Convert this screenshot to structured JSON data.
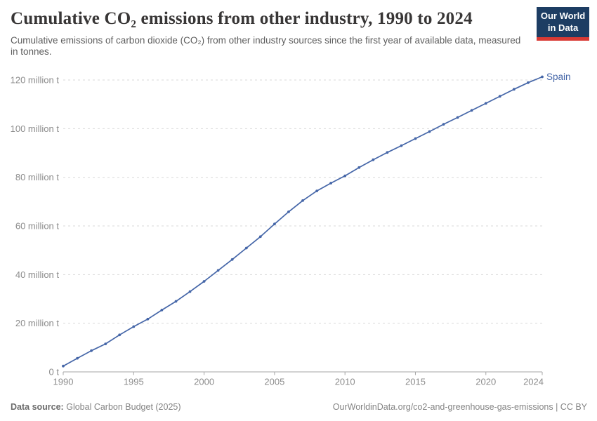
{
  "header": {
    "title": "Cumulative CO₂ emissions from other industry, 1990 to 2024",
    "subtitle": "Cumulative emissions of carbon dioxide (CO₂) from other industry sources since the first year of available data, measured in tonnes.",
    "logo": {
      "line1": "Our World",
      "line2": "in Data",
      "bg_color": "#1d3d63",
      "stripe_color": "#d93a34"
    }
  },
  "chart_data": {
    "type": "line",
    "title": "Cumulative CO₂ emissions from other industry, 1990 to 2024",
    "xlabel": "",
    "ylabel": "",
    "unit": "million t",
    "xlim": [
      1990,
      2024
    ],
    "ylim": [
      0,
      120
    ],
    "grid": "horizontal-dashed",
    "legend_position": "end-of-line",
    "xticks": [
      1990,
      1995,
      2000,
      2005,
      2010,
      2015,
      2020,
      2024
    ],
    "yticks": [
      {
        "value": 0,
        "label": "0 t"
      },
      {
        "value": 20,
        "label": "20 million t"
      },
      {
        "value": 40,
        "label": "40 million t"
      },
      {
        "value": 60,
        "label": "60 million t"
      },
      {
        "value": 80,
        "label": "80 million t"
      },
      {
        "value": 100,
        "label": "100 million t"
      },
      {
        "value": 120,
        "label": "120 million t"
      }
    ],
    "x": [
      1990,
      1991,
      1992,
      1993,
      1994,
      1995,
      1996,
      1997,
      1998,
      1999,
      2000,
      2001,
      2002,
      2003,
      2004,
      2005,
      2006,
      2007,
      2008,
      2009,
      2010,
      2011,
      2012,
      2013,
      2014,
      2015,
      2016,
      2017,
      2018,
      2019,
      2020,
      2021,
      2022,
      2023,
      2024
    ],
    "series": [
      {
        "name": "Spain",
        "color": "#4566a8",
        "values": [
          2.4,
          5.6,
          8.7,
          11.5,
          15.2,
          18.6,
          21.7,
          25.4,
          29.0,
          33.0,
          37.2,
          41.7,
          46.2,
          50.9,
          55.6,
          60.8,
          65.8,
          70.4,
          74.4,
          77.6,
          80.6,
          84.0,
          87.2,
          90.2,
          93.0,
          95.9,
          98.8,
          101.8,
          104.6,
          107.5,
          110.4,
          113.3,
          116.2,
          118.9,
          121.3
        ]
      }
    ],
    "colors": {
      "line": "#4566a8",
      "grid": "#dadada",
      "axis": "#a5a5a5",
      "tick_label": "#8c8c8c"
    }
  },
  "footer": {
    "source_label": "Data source:",
    "source_value": "Global Carbon Budget (2025)",
    "credit": "OurWorldinData.org/co2-and-greenhouse-gas-emissions | CC BY"
  }
}
